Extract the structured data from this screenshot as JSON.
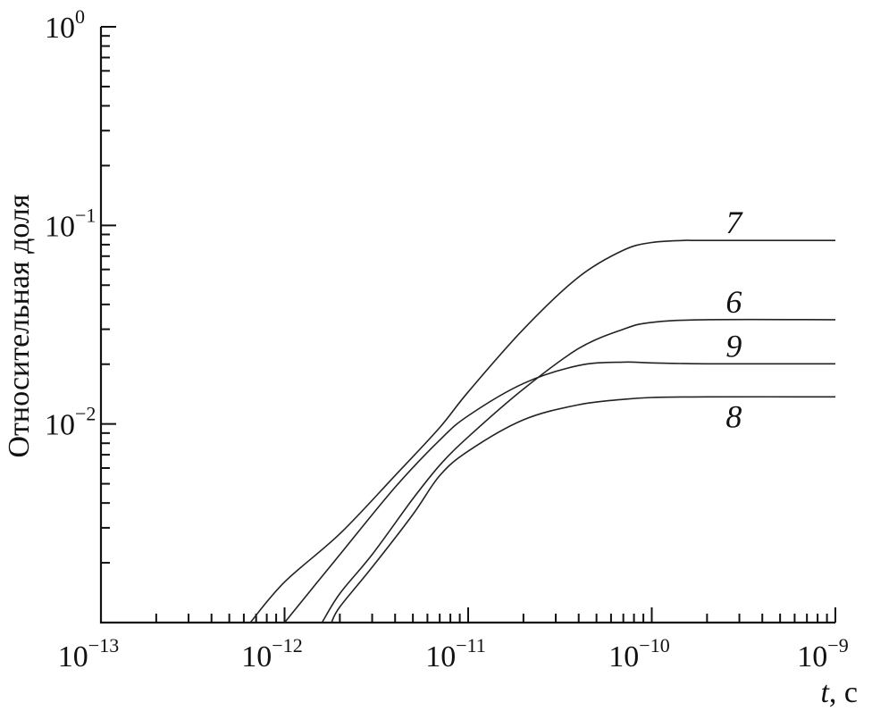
{
  "chart_data": {
    "type": "line",
    "xscale": "log",
    "yscale": "log",
    "xlim": [
      1e-13,
      1e-09
    ],
    "ylim": [
      0.001,
      1
    ],
    "xlabel_var": "t",
    "xlabel_unit": ", с",
    "ylabel": "Относительная доля",
    "x_ticks": [
      {
        "base": "10",
        "exp": "−13",
        "value": 1e-13
      },
      {
        "base": "10",
        "exp": "−12",
        "value": 1e-12
      },
      {
        "base": "10",
        "exp": "−11",
        "value": 1e-11
      },
      {
        "base": "10",
        "exp": "−10",
        "value": 1e-10
      },
      {
        "base": "10",
        "exp": "−9",
        "value": 1e-09
      }
    ],
    "y_ticks": [
      {
        "base": "10",
        "exp": "0",
        "value": 1
      },
      {
        "base": "10",
        "exp": "−1",
        "value": 0.1
      },
      {
        "base": "10",
        "exp": "−2",
        "value": 0.01
      }
    ],
    "grid": false,
    "series": [
      {
        "name": "7",
        "x": [
          6.5e-13,
          1e-12,
          2e-12,
          4e-12,
          7e-12,
          1e-11,
          2e-11,
          4e-11,
          7e-11,
          1e-10,
          1.5e-10,
          2e-10,
          1e-09
        ],
        "y": [
          0.001,
          0.0016,
          0.0028,
          0.0055,
          0.0096,
          0.0145,
          0.03,
          0.055,
          0.075,
          0.082,
          0.084,
          0.084,
          0.084
        ]
      },
      {
        "name": "6",
        "x": [
          1.6e-12,
          2e-12,
          3e-12,
          5e-12,
          7e-12,
          1e-11,
          2e-11,
          4e-11,
          7e-11,
          1e-10,
          2e-10,
          1e-09
        ],
        "y": [
          0.001,
          0.0014,
          0.0022,
          0.0042,
          0.0062,
          0.0086,
          0.015,
          0.024,
          0.03,
          0.0325,
          0.0335,
          0.0335
        ]
      },
      {
        "name": "9",
        "x": [
          1e-12,
          2e-12,
          4e-12,
          7e-12,
          1e-11,
          2e-11,
          4e-11,
          7e-11,
          1e-10,
          2e-10,
          1e-09
        ],
        "y": [
          0.001,
          0.0022,
          0.0048,
          0.0083,
          0.011,
          0.016,
          0.0197,
          0.0205,
          0.0203,
          0.0201,
          0.0201
        ]
      },
      {
        "name": "8",
        "x": [
          1.8e-12,
          2e-12,
          3e-12,
          5e-12,
          7e-12,
          1e-11,
          2e-11,
          4e-11,
          7e-11,
          1e-10,
          2e-10,
          1e-09
        ],
        "y": [
          0.001,
          0.0012,
          0.0019,
          0.0035,
          0.0055,
          0.0073,
          0.0105,
          0.0125,
          0.0133,
          0.0136,
          0.0137,
          0.0137
        ]
      }
    ]
  }
}
